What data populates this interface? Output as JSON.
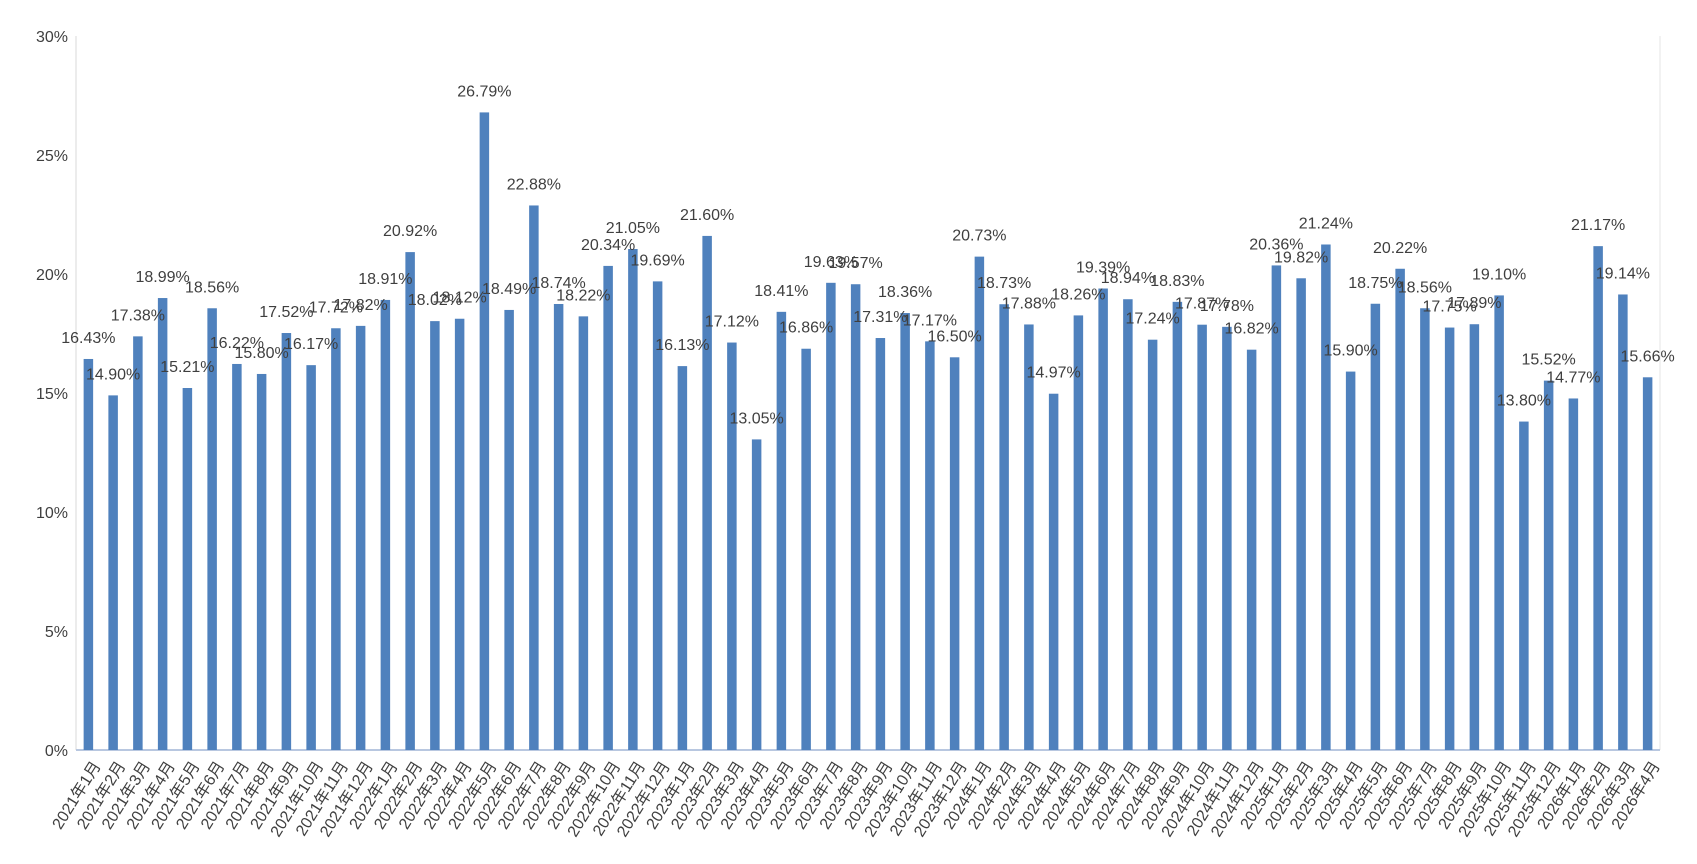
{
  "chart_data": {
    "type": "bar",
    "title": "",
    "xlabel": "",
    "ylabel": "",
    "ylim": [
      0,
      30
    ],
    "y_ticks": [
      "0%",
      "5%",
      "10%",
      "15%",
      "20%",
      "25%",
      "30%"
    ],
    "y_tick_values": [
      0,
      5,
      10,
      15,
      20,
      25,
      30
    ],
    "grid": false,
    "legend": "none",
    "bar_color": "#4f81bd",
    "categories": [
      "2021年1月",
      "2021年2月",
      "2021年3月",
      "2021年4月",
      "2021年5月",
      "2021年6月",
      "2021年7月",
      "2021年8月",
      "2021年9月",
      "2021年10月",
      "2021年11月",
      "2021年12月",
      "2022年1月",
      "2022年2月",
      "2022年3月",
      "2022年4月",
      "2022年5月",
      "2022年6月",
      "2022年7月",
      "2022年8月",
      "2022年9月",
      "2022年10月",
      "2022年11月",
      "2022年12月",
      "2023年1月",
      "2023年2月",
      "2023年3月",
      "2023年4月",
      "2023年5月",
      "2023年6月",
      "2023年7月",
      "2023年8月",
      "2023年9月",
      "2023年10月",
      "2023年11月",
      "2023年12月",
      "2024年1月",
      "2024年2月",
      "2024年3月",
      "2024年4月",
      "2024年5月",
      "2024年6月",
      "2024年7月",
      "2024年8月",
      "2024年9月",
      "2024年10月",
      "2024年11月",
      "2024年12月",
      "2025年1月",
      "2025年2月",
      "2025年3月",
      "2025年4月",
      "2025年5月",
      "2025年6月",
      "2025年7月",
      "2025年8月",
      "2025年9月",
      "2025年10月",
      "2025年11月",
      "2025年12月",
      "2026年1月",
      "2026年2月",
      "2026年3月",
      "2026年4月"
    ],
    "values": [
      16.43,
      14.9,
      17.38,
      18.99,
      15.21,
      18.56,
      16.22,
      15.8,
      17.52,
      16.17,
      17.72,
      17.82,
      18.91,
      20.92,
      18.02,
      18.12,
      26.79,
      18.49,
      22.88,
      18.74,
      18.22,
      20.34,
      21.05,
      19.69,
      16.13,
      21.6,
      17.12,
      13.05,
      18.41,
      16.86,
      19.63,
      19.57,
      17.31,
      18.36,
      17.17,
      16.5,
      20.73,
      18.73,
      17.88,
      14.97,
      18.26,
      19.39,
      18.94,
      17.24,
      18.83,
      17.87,
      17.78,
      16.82,
      20.36,
      19.82,
      21.24,
      15.9,
      18.75,
      20.22,
      18.56,
      17.75,
      17.89,
      19.1,
      13.8,
      15.52,
      14.77,
      21.17,
      19.14,
      15.66
    ],
    "data_labels": [
      "16.43%",
      "14.90%",
      "17.38%",
      "18.99%",
      "15.21%",
      "18.56%",
      "16.22%",
      "15.80%",
      "17.52%",
      "16.17%",
      "17.72%",
      "17.82%",
      "18.91%",
      "20.92%",
      "18.02%",
      "18.12%",
      "26.79%",
      "18.49%",
      "22.88%",
      "18.74%",
      "18.22%",
      "20.34%",
      "21.05%",
      "19.69%",
      "16.13%",
      "21.60%",
      "17.12%",
      "13.05%",
      "18.41%",
      "16.86%",
      "19.63%",
      "19.57%",
      "17.31%",
      "18.36%",
      "17.17%",
      "16.50%",
      "20.73%",
      "18.73%",
      "17.88%",
      "14.97%",
      "18.26%",
      "19.39%",
      "18.94%",
      "17.24%",
      "18.83%",
      "17.87%",
      "17.78%",
      "16.82%",
      "20.36%",
      "19.82%",
      "21.24%",
      "15.90%",
      "18.75%",
      "20.22%",
      "18.56%",
      "17.75%",
      "17.89%",
      "19.10%",
      "13.80%",
      "15.52%",
      "14.77%",
      "21.17%",
      "19.14%",
      "15.66%"
    ]
  }
}
